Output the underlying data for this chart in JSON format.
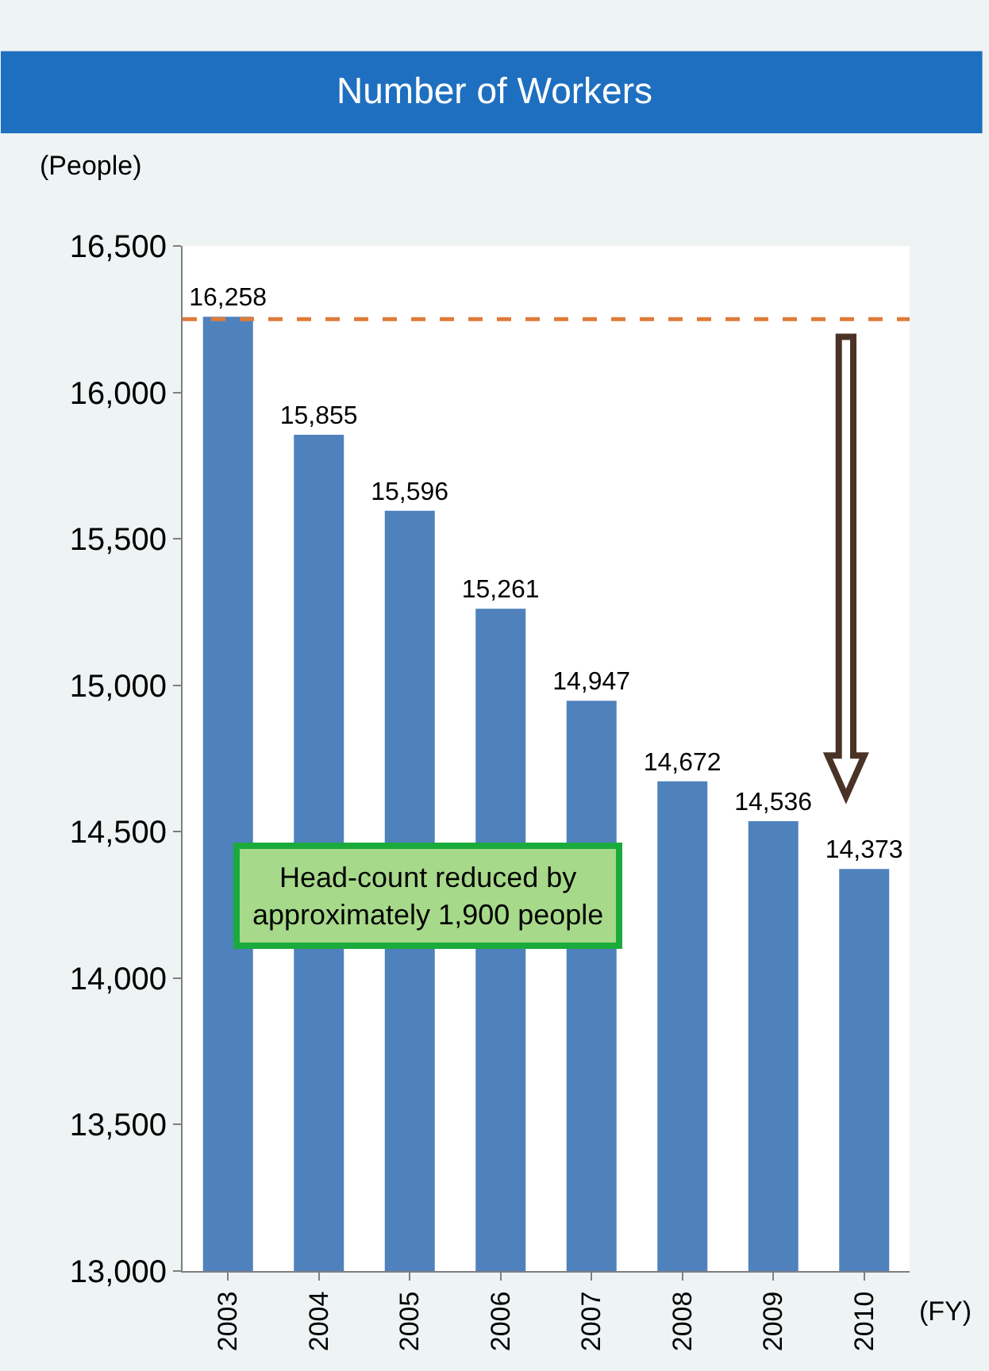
{
  "chart_data": {
    "type": "bar",
    "title": "Number of Workers",
    "ylabel": "(People)",
    "xlabel": "(FY)",
    "categories": [
      "2003",
      "2004",
      "2005",
      "2006",
      "2007",
      "2008",
      "2009",
      "2010"
    ],
    "values": [
      16258,
      15855,
      15596,
      15261,
      14947,
      14672,
      14536,
      14373
    ],
    "color": "#4f81bd",
    "ylim": [
      13000,
      16500
    ],
    "yticks": [
      {
        "value": 13000,
        "label": "13,000"
      },
      {
        "value": 13500,
        "label": "13,500"
      },
      {
        "value": 14000,
        "label": "14,000"
      },
      {
        "value": 14500,
        "label": "14,500"
      },
      {
        "value": 15000,
        "label": "15,000"
      },
      {
        "value": 15500,
        "label": "15,500"
      },
      {
        "value": 16000,
        "label": "16,000"
      },
      {
        "value": 16500,
        "label": "16,500"
      }
    ],
    "value_labels": [
      "16,258",
      "15,855",
      "15,596",
      "15,261",
      "14,947",
      "14,672",
      "14,536",
      "14,373"
    ],
    "ref_lines": [
      {
        "axis": "y",
        "value": 16250,
        "color": "#e07b39",
        "line_style": "dashed"
      }
    ],
    "annotations": [
      "Head-count reduced by\napproximately 1,900 people"
    ]
  }
}
